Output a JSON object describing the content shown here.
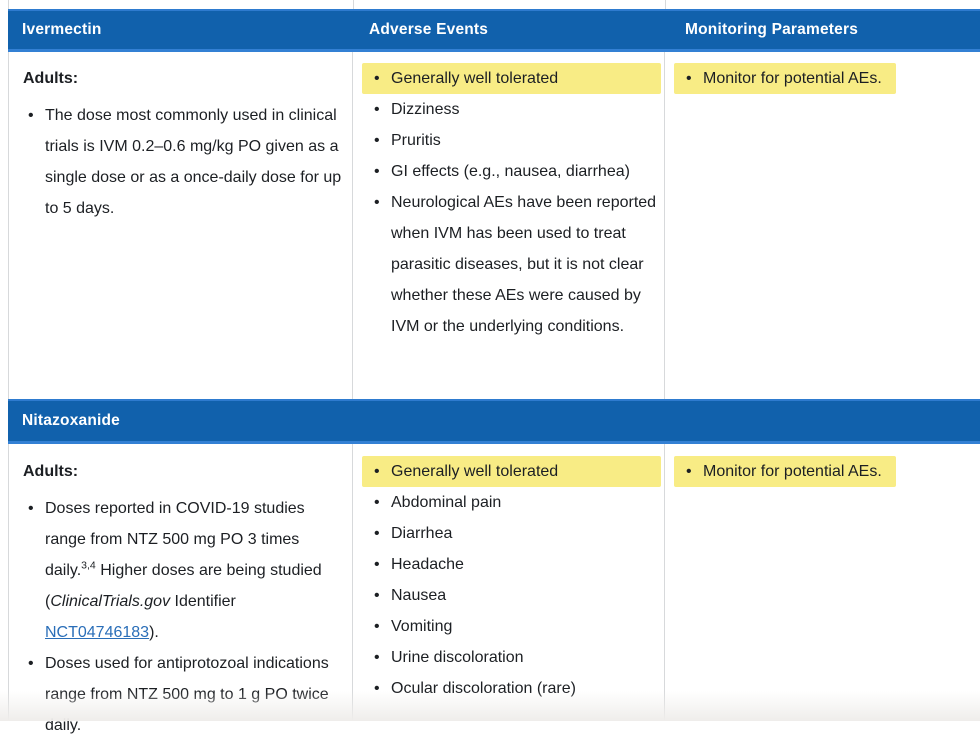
{
  "glyphs": {
    "bullet": "•"
  },
  "colors": {
    "header_blue": "#1161ac",
    "header_blue_light": "#3380d4",
    "highlight_yellow": "#f8ec85",
    "link_blue": "#2a6eb8",
    "divider_gray": "#d7d9db"
  },
  "sections": [
    {
      "header": {
        "drug": "Ivermectin",
        "col2": "Adverse Events",
        "col3": "Monitoring Parameters"
      },
      "dosing": {
        "heading": "Adults:",
        "items": [
          {
            "text": "The dose most commonly used in clinical trials is IVM 0.2–0.6 mg/kg PO given as a single dose or as a once-daily dose for up to 5 days."
          }
        ]
      },
      "adverse_events": {
        "items": [
          {
            "text": "Generally well tolerated",
            "highlight": true
          },
          {
            "text": "Dizziness"
          },
          {
            "text": "Pruritis"
          },
          {
            "text": "GI effects (e.g., nausea, diarrhea)"
          },
          {
            "text": "Neurological AEs have been reported when IVM has been used to treat parasitic diseases, but it is not clear whether these AEs were caused by IVM or the underlying conditions."
          }
        ]
      },
      "monitoring": {
        "items": [
          {
            "text": "Monitor for potential AEs.",
            "highlight": true
          }
        ]
      }
    },
    {
      "header": {
        "drug": "Nitazoxanide"
      },
      "dosing": {
        "heading": "Adults:",
        "items": [
          {
            "segments": {
              "pre": "Doses reported in COVID-19 studies range from NTZ 500 mg PO 3 times daily.",
              "sup": "3,4",
              "mid": " Higher doses are being studied (",
              "italic": "ClinicalTrials.gov",
              "mid2": " Identifier ",
              "link": "NCT04746183",
              "end": ")."
            }
          },
          {
            "text": "Doses used for antiprotozoal indications range from NTZ 500 mg to 1 g PO twice daily."
          }
        ]
      },
      "adverse_events": {
        "items": [
          {
            "text": "Generally well tolerated",
            "highlight": true
          },
          {
            "text": "Abdominal pain"
          },
          {
            "text": "Diarrhea"
          },
          {
            "text": "Headache"
          },
          {
            "text": "Nausea"
          },
          {
            "text": "Vomiting"
          },
          {
            "text": "Urine discoloration"
          },
          {
            "text": "Ocular discoloration (rare)"
          }
        ]
      },
      "monitoring": {
        "items": [
          {
            "text": "Monitor for potential AEs.",
            "highlight": true
          }
        ]
      }
    }
  ]
}
